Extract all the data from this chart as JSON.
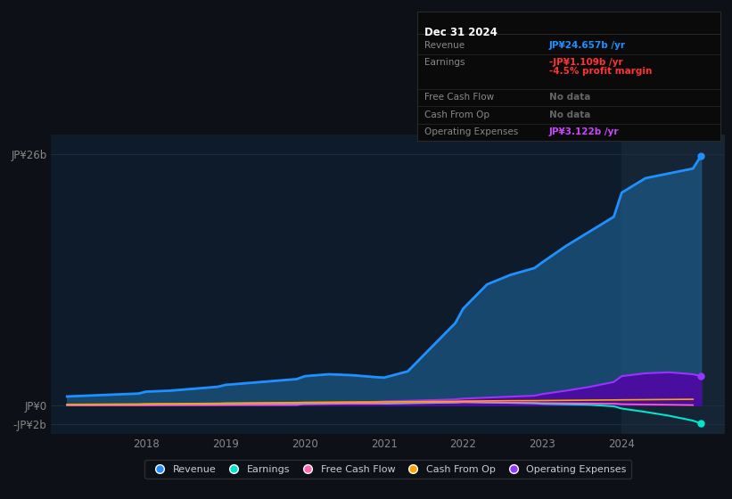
{
  "bg_color": "#0d1117",
  "plot_bg_color": "#0d1b2a",
  "grid_color": "#1e2d40",
  "info_box": {
    "title": "Dec 31 2024",
    "rows": [
      {
        "label": "Revenue",
        "value": "JP¥24.657b",
        "unit": " /yr",
        "value_color": "#1e90ff",
        "subvalue": null
      },
      {
        "label": "Earnings",
        "value": "-JP¥1.109b",
        "unit": " /yr",
        "value_color": "#ff3333",
        "subvalue": "-4.5% profit margin",
        "subvalue_color": "#ff3333"
      },
      {
        "label": "Free Cash Flow",
        "value": "No data",
        "unit": "",
        "value_color": "#666666",
        "subvalue": null
      },
      {
        "label": "Cash From Op",
        "value": "No data",
        "unit": "",
        "value_color": "#666666",
        "subvalue": null
      },
      {
        "label": "Operating Expenses",
        "value": "JP¥3.122b",
        "unit": " /yr",
        "value_color": "#cc44ff",
        "subvalue": null
      }
    ]
  },
  "years": [
    2017.0,
    2017.3,
    2017.6,
    2017.9,
    2018.0,
    2018.3,
    2018.6,
    2018.9,
    2019.0,
    2019.3,
    2019.6,
    2019.9,
    2020.0,
    2020.3,
    2020.6,
    2020.9,
    2021.0,
    2021.3,
    2021.6,
    2021.9,
    2022.0,
    2022.3,
    2022.6,
    2022.9,
    2023.0,
    2023.3,
    2023.6,
    2023.9,
    2024.0,
    2024.3,
    2024.6,
    2024.9,
    2025.0
  ],
  "revenue": [
    0.9,
    1.0,
    1.1,
    1.2,
    1.4,
    1.5,
    1.7,
    1.9,
    2.1,
    2.3,
    2.5,
    2.7,
    3.0,
    3.2,
    3.1,
    2.9,
    2.85,
    3.5,
    6.0,
    8.5,
    10.0,
    12.5,
    13.5,
    14.2,
    14.8,
    16.5,
    18.0,
    19.5,
    22.0,
    23.5,
    24.0,
    24.5,
    25.8
  ],
  "earnings": [
    0.05,
    0.06,
    0.07,
    0.08,
    0.1,
    0.11,
    0.13,
    0.14,
    0.16,
    0.17,
    0.18,
    0.19,
    0.2,
    0.21,
    0.2,
    0.18,
    0.16,
    0.2,
    0.24,
    0.28,
    0.33,
    0.28,
    0.24,
    0.19,
    0.14,
    0.09,
    0.04,
    -0.12,
    -0.35,
    -0.7,
    -1.1,
    -1.6,
    -1.9
  ],
  "free_cash_flow": [
    -0.02,
    -0.02,
    -0.01,
    -0.01,
    0.0,
    0.01,
    0.02,
    0.03,
    0.04,
    0.06,
    0.08,
    0.09,
    0.1,
    0.13,
    0.16,
    0.18,
    0.2,
    0.23,
    0.26,
    0.28,
    0.3,
    0.28,
    0.26,
    0.24,
    0.22,
    0.2,
    0.18,
    0.15,
    0.1,
    0.07,
    0.04,
    0.01,
    null
  ],
  "cash_from_op": [
    0.08,
    0.09,
    0.1,
    0.11,
    0.13,
    0.15,
    0.17,
    0.19,
    0.21,
    0.23,
    0.25,
    0.27,
    0.29,
    0.31,
    0.32,
    0.33,
    0.34,
    0.36,
    0.38,
    0.4,
    0.42,
    0.44,
    0.46,
    0.47,
    0.48,
    0.5,
    0.52,
    0.54,
    0.55,
    0.57,
    0.59,
    0.61,
    null
  ],
  "op_expenses": [
    0.0,
    0.0,
    0.0,
    0.0,
    0.0,
    0.0,
    0.0,
    0.0,
    0.0,
    0.0,
    0.0,
    0.0,
    0.2,
    0.25,
    0.3,
    0.35,
    0.4,
    0.45,
    0.52,
    0.6,
    0.68,
    0.78,
    0.88,
    0.98,
    1.15,
    1.5,
    1.9,
    2.4,
    3.0,
    3.3,
    3.4,
    3.2,
    3.0
  ],
  "ylim": [
    -3.0,
    28.0
  ],
  "xlim": [
    2016.8,
    2025.3
  ],
  "yticks": [
    -2,
    0,
    26
  ],
  "ytick_labels": [
    "-JP¥2b",
    "JP¥0",
    "JP¥26b"
  ],
  "xticks": [
    2018,
    2019,
    2020,
    2021,
    2022,
    2023,
    2024
  ],
  "revenue_color": "#1e90ff",
  "revenue_fill_color": "#1e5a8a",
  "earnings_color": "#00e5cc",
  "free_cash_flow_color": "#ff69b4",
  "cash_from_op_color": "#ffa500",
  "op_expenses_color": "#9933ff",
  "op_expenses_fill_color": "#5500aa",
  "highlight_x": 2024.0,
  "highlight_color": "#152535",
  "legend_items": [
    {
      "label": "Revenue",
      "color": "#1e90ff"
    },
    {
      "label": "Earnings",
      "color": "#00e5cc"
    },
    {
      "label": "Free Cash Flow",
      "color": "#ff69b4"
    },
    {
      "label": "Cash From Op",
      "color": "#ffa500"
    },
    {
      "label": "Operating Expenses",
      "color": "#9933ff"
    }
  ]
}
